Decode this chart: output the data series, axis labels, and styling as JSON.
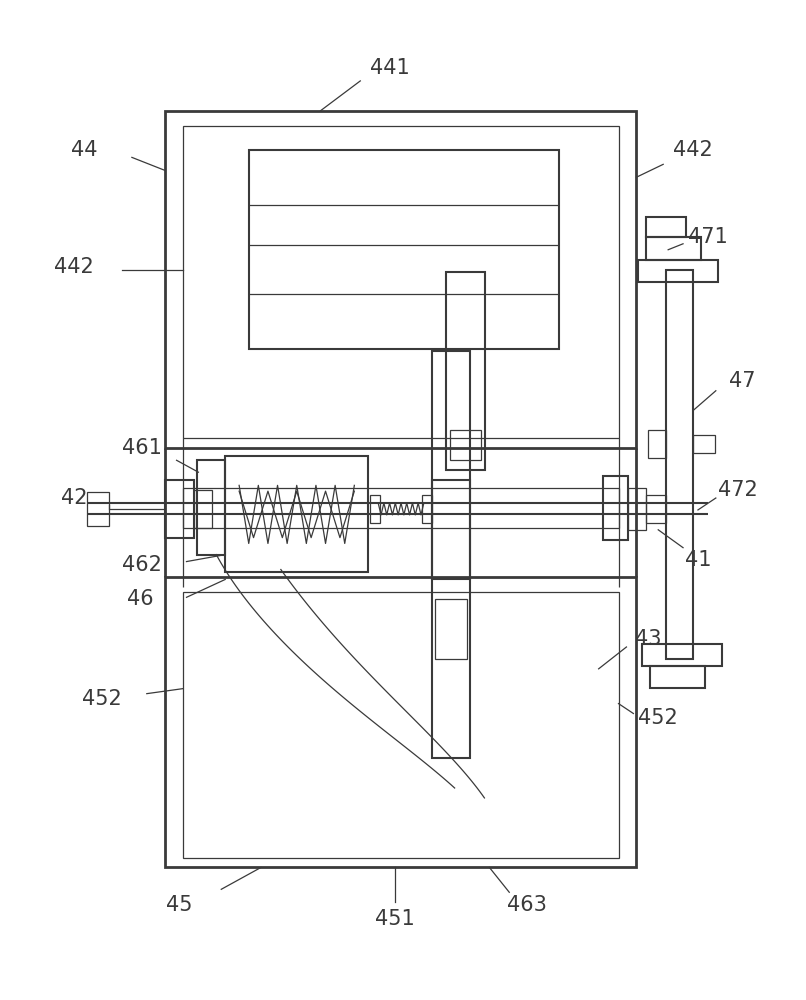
{
  "bg_color": "#ffffff",
  "lc": "#3a3a3a",
  "lw_thick": 2.0,
  "lw_med": 1.5,
  "lw_thin": 0.9,
  "font_size": 15
}
